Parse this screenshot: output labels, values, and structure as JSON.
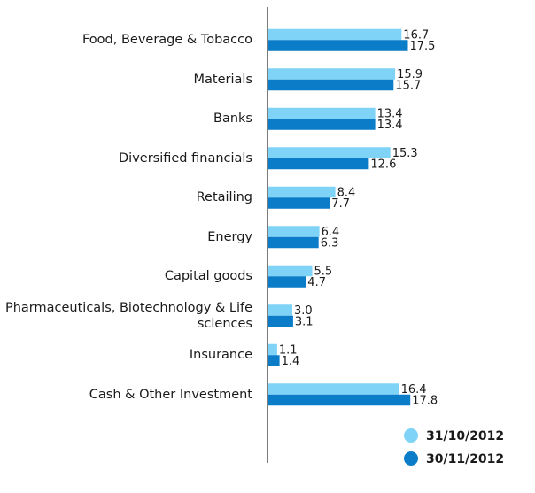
{
  "chart_data": {
    "type": "hbar",
    "categories": [
      "Food, Beverage & Tobacco",
      "Materials",
      "Banks",
      "Diversified financials",
      "Retailing",
      "Energy",
      "Capital goods",
      "Pharmaceuticals, Biotechnology & Life sciences",
      "Insurance",
      "Cash & Other Investment"
    ],
    "series": [
      {
        "name": "31/10/2012",
        "color": "#7fd3f7",
        "values": [
          16.7,
          15.9,
          13.4,
          15.3,
          8.4,
          6.4,
          5.5,
          3.0,
          1.1,
          16.4
        ],
        "value_labels": [
          "16.7",
          "15.9",
          "13.4",
          "15.3",
          "8.4",
          "6.4",
          "5.5",
          "3.0",
          "1.1",
          "16.4"
        ]
      },
      {
        "name": "30/11/2012",
        "color": "#0a7cc8",
        "values": [
          17.5,
          15.7,
          13.4,
          12.6,
          7.7,
          6.3,
          4.7,
          3.1,
          1.4,
          17.8
        ],
        "value_labels": [
          "17.5",
          "15.7",
          "13.4",
          "12.6",
          "7.7",
          "6.3",
          "4.7",
          "3.1",
          "1.4",
          "17.8"
        ]
      }
    ],
    "xlim": [
      0,
      33
    ]
  }
}
